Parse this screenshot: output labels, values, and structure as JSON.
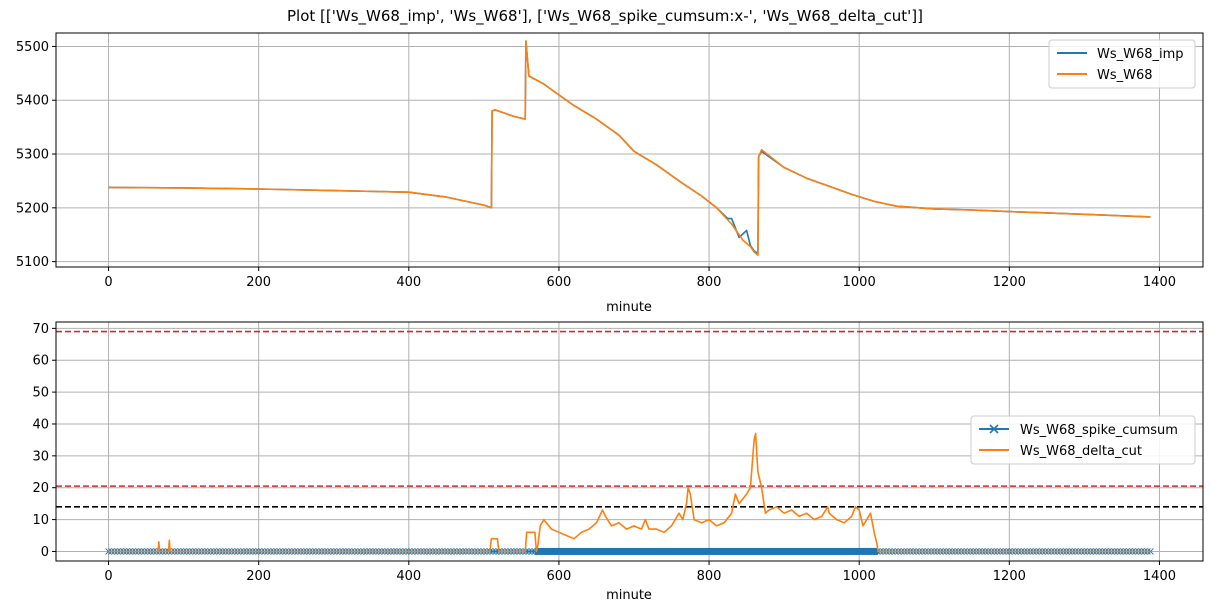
{
  "title": "Plot [['Ws_W68_imp', 'Ws_W68'], ['Ws_W68_spike_cumsum:x-', 'Ws_W68_delta_cut']]",
  "colors": {
    "blue": "#1f77b4",
    "orange": "#ff7f0e",
    "red": "#d62728",
    "black": "#000000",
    "grid": "#b0b0b0"
  },
  "chart_data": [
    {
      "type": "line",
      "xlabel": "minute",
      "ylabel": "",
      "xlim": [
        -70,
        1458
      ],
      "ylim": [
        5090,
        5525
      ],
      "xticks": [
        0,
        200,
        400,
        600,
        800,
        1000,
        1200,
        1400
      ],
      "yticks": [
        5100,
        5200,
        5300,
        5400,
        5500
      ],
      "grid": true,
      "legend_position": "top-right",
      "series": [
        {
          "name": "Ws_W68_imp",
          "color": "#1f77b4",
          "points": [
            [
              0,
              5238
            ],
            [
              100,
              5237
            ],
            [
              200,
              5235
            ],
            [
              300,
              5232
            ],
            [
              400,
              5229
            ],
            [
              450,
              5220
            ],
            [
              500,
              5205
            ],
            [
              510,
              5200
            ],
            [
              511,
              5380
            ],
            [
              515,
              5382
            ],
            [
              540,
              5370
            ],
            [
              555,
              5365
            ],
            [
              556,
              5510
            ],
            [
              560,
              5445
            ],
            [
              580,
              5430
            ],
            [
              600,
              5410
            ],
            [
              620,
              5390
            ],
            [
              650,
              5365
            ],
            [
              680,
              5335
            ],
            [
              700,
              5305
            ],
            [
              730,
              5280
            ],
            [
              760,
              5250
            ],
            [
              790,
              5222
            ],
            [
              810,
              5200
            ],
            [
              825,
              5180
            ],
            [
              830,
              5180
            ],
            [
              840,
              5145
            ],
            [
              850,
              5158
            ],
            [
              855,
              5130
            ],
            [
              860,
              5120
            ],
            [
              865,
              5115
            ],
            [
              866,
              5295
            ],
            [
              870,
              5305
            ],
            [
              900,
              5275
            ],
            [
              930,
              5255
            ],
            [
              960,
              5240
            ],
            [
              990,
              5225
            ],
            [
              1020,
              5212
            ],
            [
              1050,
              5203
            ],
            [
              1100,
              5198
            ],
            [
              1150,
              5196
            ],
            [
              1200,
              5193
            ],
            [
              1300,
              5188
            ],
            [
              1388,
              5183
            ]
          ]
        },
        {
          "name": "Ws_W68",
          "color": "#ff7f0e",
          "points": [
            [
              0,
              5238
            ],
            [
              100,
              5237
            ],
            [
              200,
              5235
            ],
            [
              300,
              5232
            ],
            [
              400,
              5229
            ],
            [
              450,
              5220
            ],
            [
              500,
              5205
            ],
            [
              510,
              5200
            ],
            [
              511,
              5380
            ],
            [
              515,
              5382
            ],
            [
              540,
              5370
            ],
            [
              555,
              5365
            ],
            [
              556,
              5510
            ],
            [
              560,
              5445
            ],
            [
              580,
              5430
            ],
            [
              600,
              5410
            ],
            [
              620,
              5390
            ],
            [
              650,
              5365
            ],
            [
              680,
              5335
            ],
            [
              700,
              5305
            ],
            [
              730,
              5280
            ],
            [
              760,
              5250
            ],
            [
              790,
              5222
            ],
            [
              810,
              5200
            ],
            [
              830,
              5170
            ],
            [
              845,
              5140
            ],
            [
              855,
              5128
            ],
            [
              860,
              5118
            ],
            [
              865,
              5112
            ],
            [
              866,
              5295
            ],
            [
              870,
              5308
            ],
            [
              900,
              5275
            ],
            [
              930,
              5255
            ],
            [
              960,
              5240
            ],
            [
              990,
              5225
            ],
            [
              1020,
              5212
            ],
            [
              1050,
              5203
            ],
            [
              1100,
              5198
            ],
            [
              1150,
              5196
            ],
            [
              1200,
              5193
            ],
            [
              1300,
              5188
            ],
            [
              1388,
              5183
            ]
          ]
        }
      ]
    },
    {
      "type": "line",
      "xlabel": "minute",
      "ylabel": "",
      "xlim": [
        -70,
        1458
      ],
      "ylim": [
        -3,
        72
      ],
      "xticks": [
        0,
        200,
        400,
        600,
        800,
        1000,
        1200,
        1400
      ],
      "yticks": [
        0,
        10,
        20,
        30,
        40,
        50,
        60,
        70
      ],
      "grid": true,
      "legend_position": "center-right",
      "hlines": [
        {
          "y": 69,
          "color": "#d62728",
          "style": "dashed"
        },
        {
          "y": 20.5,
          "color": "#d62728",
          "style": "dashed"
        },
        {
          "y": 14,
          "color": "#000000",
          "style": "dashed"
        }
      ],
      "series": [
        {
          "name": "Ws_W68_spike_cumsum",
          "color": "#1f77b4",
          "marker": "x",
          "x_range": [
            0,
            1388
          ],
          "value": 0
        },
        {
          "name": "Ws_W68_delta_cut",
          "color": "#ff7f0e",
          "points": [
            [
              0,
              0
            ],
            [
              66,
              0
            ],
            [
              67,
              3
            ],
            [
              68,
              0
            ],
            [
              80,
              0
            ],
            [
              81,
              3.5
            ],
            [
              82,
              0
            ],
            [
              508,
              0
            ],
            [
              510,
              4
            ],
            [
              518,
              4
            ],
            [
              520,
              0
            ],
            [
              555,
              0
            ],
            [
              557,
              6
            ],
            [
              568,
              6
            ],
            [
              570,
              0
            ],
            [
              572,
              2
            ],
            [
              575,
              8
            ],
            [
              580,
              10
            ],
            [
              590,
              7
            ],
            [
              600,
              6
            ],
            [
              610,
              5
            ],
            [
              620,
              4
            ],
            [
              630,
              6
            ],
            [
              640,
              7
            ],
            [
              650,
              9
            ],
            [
              658,
              13
            ],
            [
              662,
              11
            ],
            [
              670,
              8
            ],
            [
              680,
              9
            ],
            [
              690,
              7
            ],
            [
              700,
              8
            ],
            [
              710,
              7
            ],
            [
              715,
              10
            ],
            [
              720,
              7
            ],
            [
              730,
              7
            ],
            [
              740,
              6
            ],
            [
              750,
              8
            ],
            [
              760,
              12
            ],
            [
              765,
              10
            ],
            [
              770,
              15
            ],
            [
              772,
              20
            ],
            [
              775,
              18
            ],
            [
              780,
              10
            ],
            [
              790,
              9
            ],
            [
              800,
              10
            ],
            [
              810,
              8
            ],
            [
              820,
              9
            ],
            [
              830,
              12
            ],
            [
              835,
              18
            ],
            [
              840,
              15
            ],
            [
              850,
              18
            ],
            [
              855,
              20
            ],
            [
              860,
              35
            ],
            [
              862,
              37
            ],
            [
              865,
              25
            ],
            [
              870,
              20
            ],
            [
              875,
              12
            ],
            [
              880,
              13
            ],
            [
              890,
              14
            ],
            [
              900,
              12
            ],
            [
              910,
              13
            ],
            [
              920,
              11
            ],
            [
              930,
              12
            ],
            [
              940,
              10
            ],
            [
              950,
              11
            ],
            [
              958,
              14
            ],
            [
              960,
              12
            ],
            [
              970,
              10
            ],
            [
              980,
              9
            ],
            [
              990,
              11
            ],
            [
              995,
              14
            ],
            [
              1000,
              13
            ],
            [
              1005,
              8
            ],
            [
              1010,
              10
            ],
            [
              1015,
              12
            ],
            [
              1020,
              6
            ],
            [
              1024,
              2
            ],
            [
              1025,
              0
            ],
            [
              1388,
              0
            ]
          ]
        }
      ]
    }
  ]
}
